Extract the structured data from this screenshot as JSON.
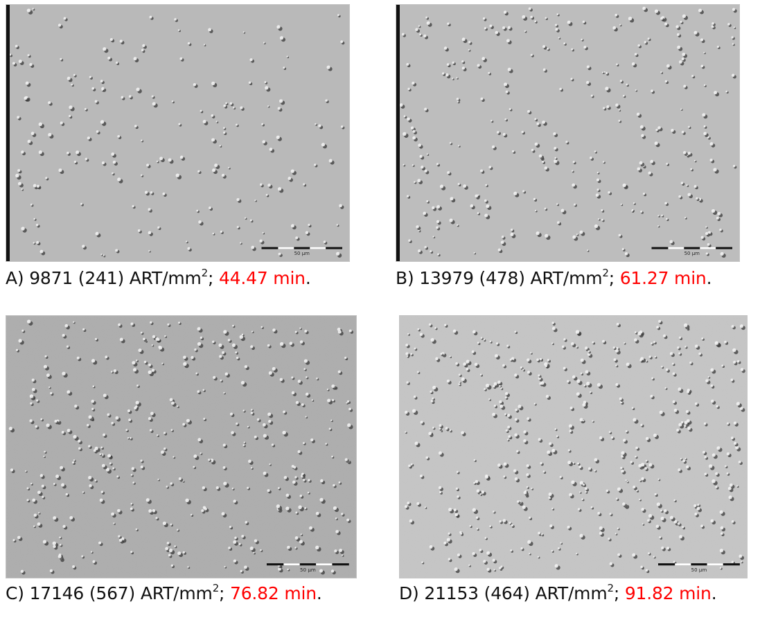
{
  "colors": {
    "caption_text": "#111111",
    "time_text": "#ff0000",
    "micrograph_background": "#b8b8b8",
    "scale_bar": "#111111"
  },
  "panels": [
    {
      "letter": "A)",
      "density": "9871",
      "deviation": "(241)",
      "unit": "ART/mm",
      "unit_exponent": "2",
      "separator": ";",
      "time": "44.47 min",
      "period": ".",
      "scale_bar_label": "50 μm"
    },
    {
      "letter": "B)",
      "density": "13979",
      "deviation": "(478)",
      "unit": "ART/mm",
      "unit_exponent": "2",
      "separator": ";",
      "time": "61.27 min",
      "period": ".",
      "scale_bar_label": "50 μm"
    },
    {
      "letter": "C)",
      "density": "17146",
      "deviation": "(567)",
      "unit": "ART/mm",
      "unit_exponent": "2",
      "separator": ";",
      "time": "76.82 min",
      "period": ".",
      "scale_bar_label": "50 μm"
    },
    {
      "letter": "D)",
      "density": "21153",
      "deviation": "(464)",
      "unit": "ART/mm",
      "unit_exponent": "2",
      "separator": ";",
      "time": "91.82 min",
      "period": ".",
      "scale_bar_label": "50 μm"
    }
  ]
}
